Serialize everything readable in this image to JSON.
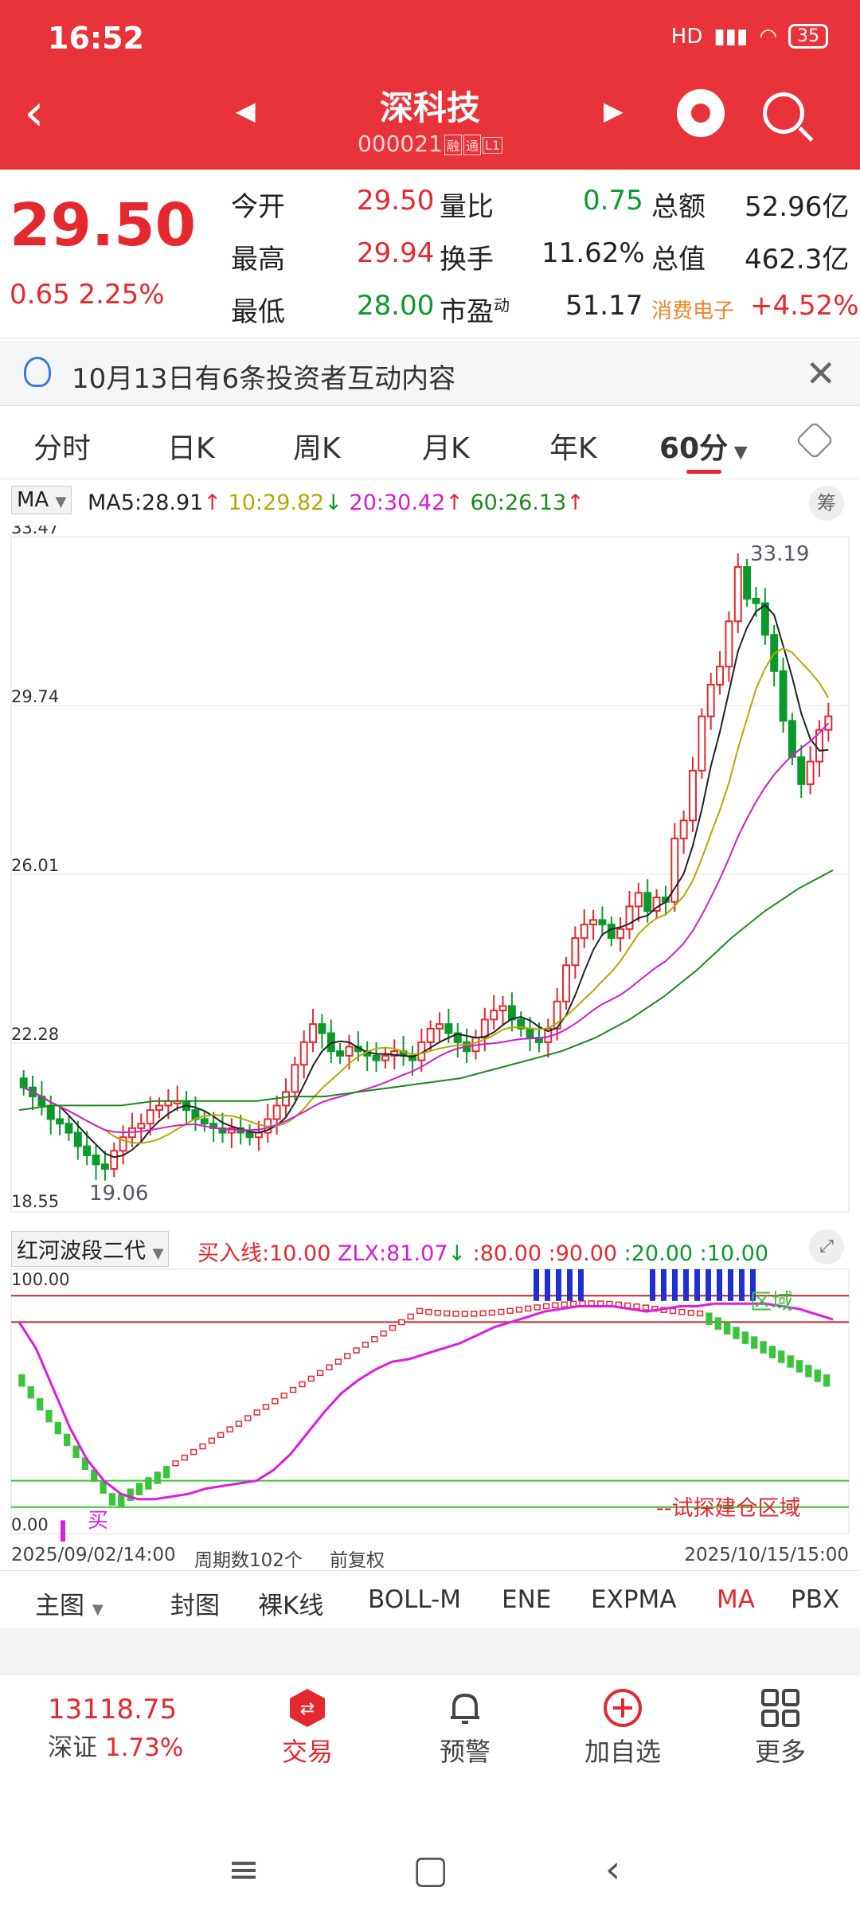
{
  "status": {
    "time": "16:52",
    "network": "HD",
    "battery": "35"
  },
  "header": {
    "title": "深科技",
    "code": "000021",
    "tags": [
      "融",
      "通",
      "L1"
    ]
  },
  "quote": {
    "price": "29.50",
    "change": "0.65",
    "change_pct": "2.25%",
    "rows": [
      {
        "l1": "今开",
        "v1": "29.50",
        "l2": "量比",
        "v2": "0.75",
        "l3": "总额",
        "v3": "52.96亿"
      },
      {
        "l1": "最高",
        "v1": "29.94",
        "l2": "换手",
        "v2": "11.62%",
        "l3": "总值",
        "v3": "462.3亿"
      },
      {
        "l1": "最低",
        "v1": "28.00",
        "l2": "市盈",
        "l2sup": "动",
        "v2": "51.17",
        "l3": "消费电子",
        "v3": "+4.52%"
      }
    ]
  },
  "notice": {
    "text": "10月13日有6条投资者互动内容"
  },
  "tabs": [
    "分时",
    "日K",
    "周K",
    "月K",
    "年K",
    "60分"
  ],
  "ma": {
    "button": "MA",
    "ma5": "MA5:28.91",
    "ma10": "10:29.82",
    "ma20": "20:30.42",
    "ma60": "60:26.13",
    "chou": "筹"
  },
  "chart_data": [
    {
      "type": "candlestick",
      "title": "",
      "ylim": [
        18.55,
        33.47
      ],
      "y_ticks": [
        "33.47",
        "29.74",
        "26.01",
        "22.28",
        "18.55"
      ],
      "annotations": [
        "33.19",
        "19.06"
      ],
      "series": [
        {
          "name": "MA5",
          "color": "#222222"
        },
        {
          "name": "10",
          "color": "#b5a800"
        },
        {
          "name": "20",
          "color": "#d51ad5"
        },
        {
          "name": "60",
          "color": "#1a8a1a"
        }
      ],
      "closes": [
        21.3,
        21.1,
        20.9,
        20.6,
        20.5,
        20.3,
        20.0,
        19.8,
        19.6,
        19.5,
        19.9,
        20.2,
        20.4,
        20.5,
        20.8,
        20.9,
        21.0,
        21.0,
        20.8,
        20.6,
        20.5,
        20.4,
        20.3,
        20.4,
        20.3,
        20.2,
        20.3,
        20.6,
        20.9,
        21.2,
        21.8,
        22.3,
        22.7,
        22.5,
        22.1,
        22.0,
        22.2,
        22.1,
        22.0,
        21.9,
        22.0,
        22.1,
        22.0,
        21.9,
        22.3,
        22.6,
        22.7,
        22.5,
        22.3,
        22.1,
        22.4,
        22.8,
        23.0,
        23.1,
        22.8,
        22.6,
        22.4,
        22.3,
        22.6,
        23.2,
        24.0,
        24.6,
        24.9,
        25.0,
        24.9,
        24.6,
        24.8,
        25.3,
        25.6,
        25.2,
        25.5,
        25.4,
        26.8,
        27.2,
        28.3,
        29.5,
        30.2,
        30.6,
        31.6,
        32.8,
        32.1,
        32.0,
        31.3,
        30.5,
        29.4,
        28.6,
        28.0,
        28.5,
        29.2,
        29.5
      ],
      "ma60": [
        20.8,
        20.9,
        20.9,
        20.9,
        21.0,
        21.0,
        21.0,
        21.0,
        21.1,
        21.1,
        21.2,
        21.3,
        21.4,
        21.5,
        21.7,
        21.9,
        22.1,
        22.4,
        22.8,
        23.3,
        23.9,
        24.6,
        25.2,
        25.7,
        26.1
      ]
    },
    {
      "type": "line",
      "title": "红河波段二代",
      "ylim": [
        0,
        100
      ],
      "y_ticks": [
        "100.00",
        "0.00"
      ],
      "legend": [
        "买入线:10.00",
        "ZLX:81.07",
        ":80.00",
        ":90.00",
        ":20.00",
        ":10.00"
      ],
      "annotations": [
        "买",
        "--试探建仓区域",
        "区域"
      ],
      "zlx": [
        80,
        70,
        55,
        40,
        28,
        20,
        15,
        13,
        13,
        14,
        15,
        17,
        18,
        19,
        20,
        24,
        30,
        38,
        46,
        53,
        58,
        62,
        65,
        66,
        68,
        70,
        72,
        75,
        78,
        80,
        82,
        84,
        85,
        86,
        86,
        86,
        85,
        84,
        85,
        86,
        86,
        87,
        87,
        87,
        87,
        86,
        85,
        83,
        81
      ]
    }
  ],
  "axis": {
    "start": "2025/09/02/14:00",
    "count": "周期数102个",
    "adjust": "前复权",
    "end": "2025/10/15/15:00"
  },
  "toolbar": [
    "主图",
    "封图",
    "裸K线",
    "BOLL-M",
    "ENE",
    "EXPMA",
    "MA",
    "PBX"
  ],
  "bottom": {
    "index_value": "13118.75",
    "index_name": "深证",
    "index_pct": "1.73%",
    "items": [
      "交易",
      "预警",
      "加自选",
      "更多"
    ]
  },
  "colors": {
    "up": "#e5282e",
    "down": "#0a9a2c",
    "header": "#e8333a"
  }
}
